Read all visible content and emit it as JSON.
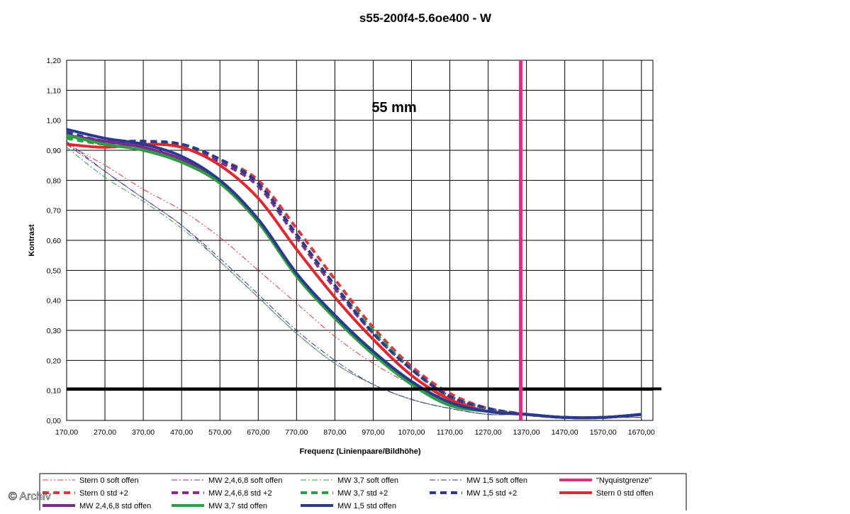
{
  "watermark": "© Archiv",
  "chart_data": {
    "type": "line",
    "title": "s55-200f4-5.6oe400 - W",
    "annotation": "55 mm",
    "xlabel": "Frequenz (Linienpaare/Bildhöhe)",
    "ylabel": "Kontrast",
    "xlim": [
      170,
      1700
    ],
    "ylim": [
      0,
      1.2
    ],
    "x_ticks": [
      "170,00",
      "270,00",
      "370,00",
      "470,00",
      "570,00",
      "670,00",
      "770,00",
      "870,00",
      "970,00",
      "1070,00",
      "1170,00",
      "1270,00",
      "1370,00",
      "1470,00",
      "1570,00",
      "1670,00"
    ],
    "y_ticks": [
      "0,00",
      "0,10",
      "0,20",
      "0,30",
      "0,40",
      "0,50",
      "0,60",
      "0,70",
      "0,80",
      "0,90",
      "1,00",
      "1,10",
      "1,20"
    ],
    "grid": true,
    "legend_position": "bottom",
    "threshold_line": {
      "y": 0.105,
      "color": "#000000"
    },
    "nyquist_line": {
      "x": 1355,
      "color": "#d63384"
    },
    "series": [
      {
        "name": "Stern 0 soft offen",
        "color": "#d9363e",
        "style": "dashdotdot",
        "width": 1,
        "x": [
          170,
          270,
          370,
          470,
          570,
          670,
          770,
          870,
          970,
          1070,
          1170,
          1270,
          1370,
          1470,
          1570,
          1670
        ],
        "y": [
          0.92,
          0.85,
          0.77,
          0.7,
          0.61,
          0.5,
          0.39,
          0.28,
          0.19,
          0.12,
          0.07,
          0.04,
          0.02,
          0.01,
          0.01,
          0.01
        ]
      },
      {
        "name": "MW 2,4,6,8 soft offen",
        "color": "#8b2a8b",
        "style": "dashdot",
        "width": 1,
        "x": [
          170,
          270,
          370,
          470,
          570,
          670,
          770,
          870,
          970,
          1070,
          1170,
          1270,
          1370,
          1470,
          1570,
          1670
        ],
        "y": [
          0.92,
          0.83,
          0.74,
          0.65,
          0.53,
          0.41,
          0.29,
          0.19,
          0.12,
          0.07,
          0.04,
          0.02,
          0.02,
          0.01,
          0.01,
          0.01
        ]
      },
      {
        "name": "MW 3,7 soft offen",
        "color": "#2e9e45",
        "style": "dashdot",
        "width": 1,
        "x": [
          170,
          270,
          370,
          470,
          570,
          670,
          770,
          870,
          970,
          1070,
          1170,
          1270,
          1370,
          1470,
          1570,
          1670
        ],
        "y": [
          0.91,
          0.81,
          0.73,
          0.64,
          0.53,
          0.41,
          0.29,
          0.19,
          0.12,
          0.07,
          0.04,
          0.02,
          0.02,
          0.01,
          0.01,
          0.01
        ]
      },
      {
        "name": "MW 1,5 soft offen",
        "color": "#2b3a8f",
        "style": "dashdot",
        "width": 1,
        "x": [
          170,
          270,
          370,
          470,
          570,
          670,
          770,
          870,
          970,
          1070,
          1170,
          1270,
          1370,
          1470,
          1570,
          1670
        ],
        "y": [
          0.93,
          0.83,
          0.74,
          0.65,
          0.54,
          0.42,
          0.3,
          0.2,
          0.12,
          0.07,
          0.04,
          0.02,
          0.02,
          0.01,
          0.01,
          0.01
        ]
      },
      {
        "name": "\"Nyquistgrenze\"",
        "color": "#d63384",
        "style": "solid",
        "width": 4,
        "x": [],
        "y": []
      },
      {
        "name": "Stern 0 std +2",
        "color": "#d9363e",
        "style": "dashed",
        "width": 4,
        "x": [
          170,
          270,
          370,
          470,
          570,
          670,
          770,
          870,
          970,
          1070,
          1170,
          1270,
          1370,
          1470,
          1570,
          1670
        ],
        "y": [
          0.95,
          0.92,
          0.93,
          0.92,
          0.87,
          0.8,
          0.64,
          0.47,
          0.31,
          0.18,
          0.09,
          0.04,
          0.02,
          0.01,
          0.01,
          0.02
        ]
      },
      {
        "name": "MW 2,4,6,8 std +2",
        "color": "#8b2a8b",
        "style": "dashed",
        "width": 4,
        "x": [
          170,
          270,
          370,
          470,
          570,
          670,
          770,
          870,
          970,
          1070,
          1170,
          1270,
          1370,
          1470,
          1570,
          1670
        ],
        "y": [
          0.96,
          0.93,
          0.93,
          0.91,
          0.86,
          0.78,
          0.61,
          0.44,
          0.29,
          0.17,
          0.08,
          0.04,
          0.02,
          0.01,
          0.01,
          0.02
        ]
      },
      {
        "name": "MW 3,7 std +2",
        "color": "#2e9e45",
        "style": "dashed",
        "width": 4,
        "x": [
          170,
          270,
          370,
          470,
          570,
          670,
          770,
          870,
          970,
          1070,
          1170,
          1270,
          1370,
          1470,
          1570,
          1670
        ],
        "y": [
          0.94,
          0.92,
          0.92,
          0.92,
          0.87,
          0.79,
          0.62,
          0.45,
          0.3,
          0.17,
          0.08,
          0.04,
          0.02,
          0.01,
          0.01,
          0.02
        ]
      },
      {
        "name": "MW 1,5 std +2",
        "color": "#2b3a8f",
        "style": "dashed",
        "width": 4,
        "x": [
          170,
          270,
          370,
          470,
          570,
          670,
          770,
          870,
          970,
          1070,
          1170,
          1270,
          1370,
          1470,
          1570,
          1670
        ],
        "y": [
          0.96,
          0.93,
          0.93,
          0.92,
          0.87,
          0.79,
          0.62,
          0.45,
          0.29,
          0.17,
          0.08,
          0.04,
          0.02,
          0.01,
          0.01,
          0.02
        ]
      },
      {
        "name": "Stern 0 std offen",
        "color": "#e0282e",
        "style": "solid",
        "width": 4,
        "x": [
          170,
          270,
          370,
          470,
          570,
          670,
          770,
          870,
          970,
          1070,
          1170,
          1270,
          1370,
          1470,
          1570,
          1670
        ],
        "y": [
          0.92,
          0.91,
          0.92,
          0.91,
          0.85,
          0.74,
          0.57,
          0.41,
          0.27,
          0.15,
          0.07,
          0.03,
          0.02,
          0.01,
          0.01,
          0.02
        ]
      },
      {
        "name": "MW 2,4,6,8 std offen",
        "color": "#7a2a8f",
        "style": "solid",
        "width": 4,
        "x": [
          170,
          270,
          370,
          470,
          570,
          670,
          770,
          870,
          970,
          1070,
          1170,
          1270,
          1370,
          1470,
          1570,
          1670
        ],
        "y": [
          0.95,
          0.93,
          0.91,
          0.87,
          0.8,
          0.67,
          0.49,
          0.35,
          0.23,
          0.13,
          0.06,
          0.03,
          0.02,
          0.01,
          0.01,
          0.02
        ]
      },
      {
        "name": "MW 3,7 std offen",
        "color": "#2e9e45",
        "style": "solid",
        "width": 4,
        "x": [
          170,
          270,
          370,
          470,
          570,
          670,
          770,
          870,
          970,
          1070,
          1170,
          1270,
          1370,
          1470,
          1570,
          1670
        ],
        "y": [
          0.95,
          0.92,
          0.9,
          0.86,
          0.79,
          0.66,
          0.48,
          0.34,
          0.22,
          0.12,
          0.05,
          0.03,
          0.02,
          0.01,
          0.01,
          0.02
        ]
      },
      {
        "name": "MW 1,5 std offen",
        "color": "#2b3a8f",
        "style": "solid",
        "width": 4,
        "x": [
          170,
          270,
          370,
          470,
          570,
          670,
          770,
          870,
          970,
          1070,
          1170,
          1270,
          1370,
          1470,
          1570,
          1670
        ],
        "y": [
          0.97,
          0.94,
          0.92,
          0.88,
          0.8,
          0.67,
          0.49,
          0.35,
          0.23,
          0.13,
          0.06,
          0.03,
          0.02,
          0.01,
          0.01,
          0.02
        ]
      }
    ]
  }
}
